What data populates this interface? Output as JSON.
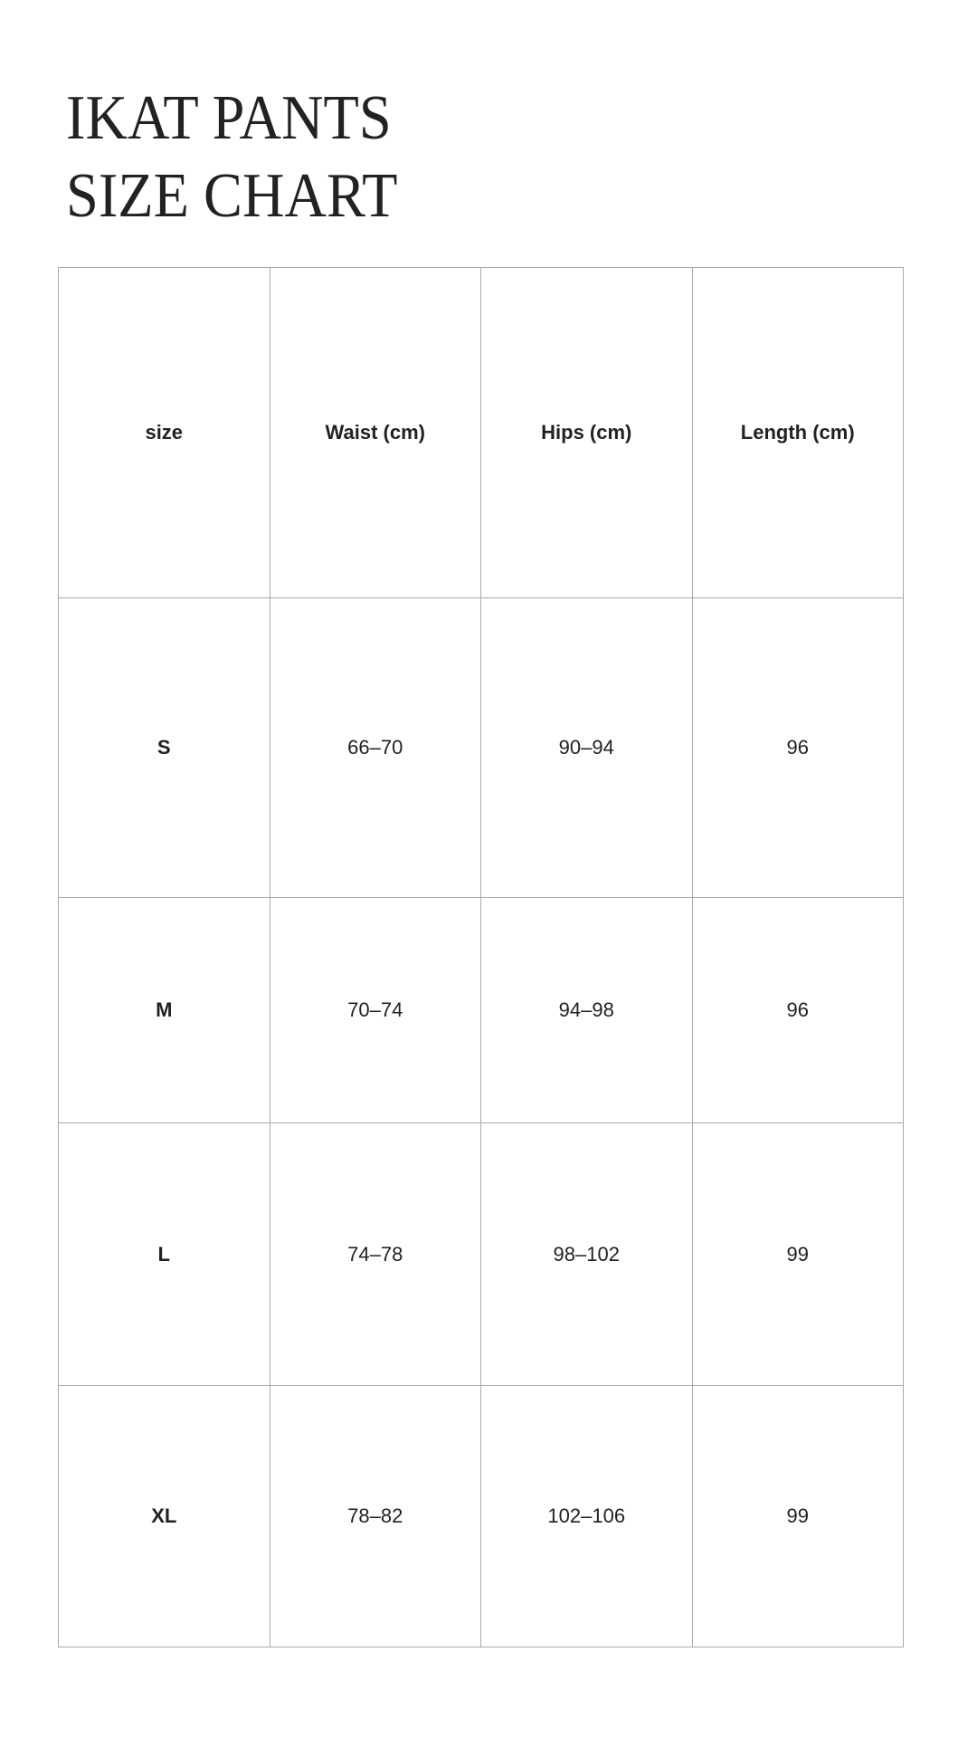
{
  "title": {
    "line1": "IKAT PANTS",
    "line2": "SIZE CHART"
  },
  "table": {
    "headers": [
      "size",
      "Waist (cm)",
      "Hips (cm)",
      "Length (cm)"
    ],
    "rows": [
      [
        "S",
        "66–70",
        "90–94",
        "96"
      ],
      [
        "M",
        "70–74",
        "94–98",
        "96"
      ],
      [
        "L",
        "74–78",
        "98–102",
        "99"
      ],
      [
        "XL",
        "78–82",
        "102–106",
        "99"
      ]
    ]
  }
}
